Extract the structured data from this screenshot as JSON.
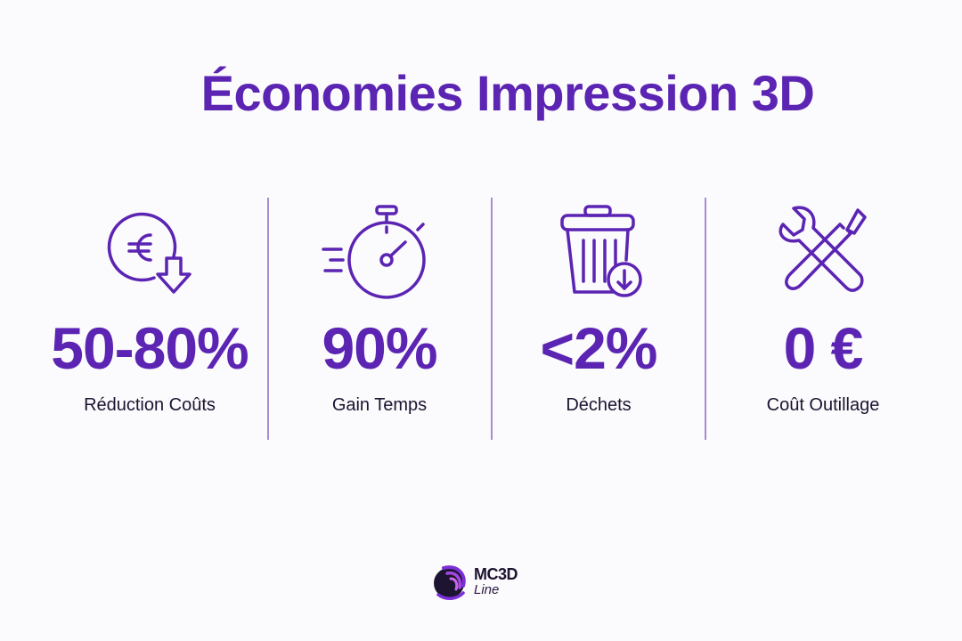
{
  "title": "Économies Impression 3D",
  "accent_color": "#5b24b3",
  "stats": [
    {
      "icon": "euro-down-arrow-icon",
      "value": "50-80%",
      "label": "Réduction Coûts"
    },
    {
      "icon": "stopwatch-icon",
      "value": "90%",
      "label": "Gain Temps"
    },
    {
      "icon": "trash-bin-download-icon",
      "value": "<2%",
      "label": "Déchets"
    },
    {
      "icon": "wrench-screwdriver-icon",
      "value": "0 €",
      "label": "Coût Outillage"
    }
  ],
  "logo": {
    "line1": "MC3D",
    "line2": "Line"
  }
}
